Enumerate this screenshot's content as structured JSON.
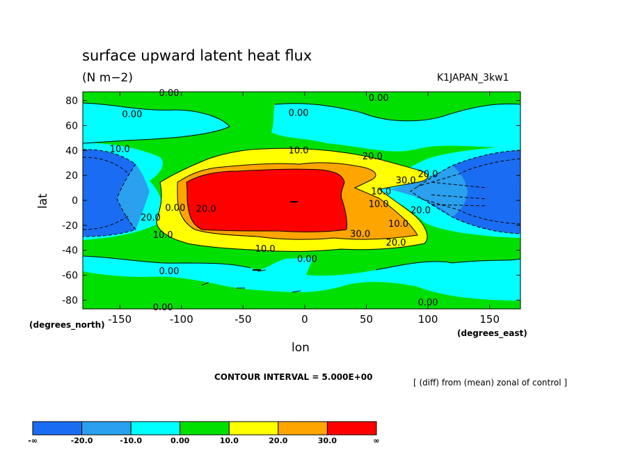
{
  "header": {
    "title": "surface upward latent heat flux",
    "units": "(N m−2)",
    "run": "K1JAPAN_3kw1"
  },
  "axes": {
    "xlabel": "lon",
    "ylabel": "lat",
    "x_units": "(degrees_east)",
    "y_units": "(degrees_north)"
  },
  "footer": {
    "contour_interval": "CONTOUR INTERVAL = 5.000E+00",
    "note": "[ (diff) from (mean) zonal of control ]"
  },
  "chart_data": {
    "type": "heatmap",
    "title": "surface upward latent heat flux",
    "subtitle": "(N m−2)",
    "xlabel": "lon",
    "ylabel": "lat",
    "xlim": [
      -180,
      175
    ],
    "ylim": [
      -87,
      87
    ],
    "x_ticks": [
      -150,
      -100,
      -50,
      0,
      50,
      100,
      150
    ],
    "y_ticks": [
      -80,
      -60,
      -40,
      -20,
      0,
      20,
      40,
      60,
      80
    ],
    "grid": false,
    "colorbar": {
      "labels": [
        "-∞",
        "-20.0",
        "-10.0",
        "0.00",
        "10.0",
        "20.0",
        "30.0",
        "∞"
      ],
      "colors": [
        "#1a6df2",
        "#2aa0ee",
        "#00ffff",
        "#00e000",
        "#ffff00",
        "#ffa500",
        "#ff0000"
      ]
    },
    "contour_interval": 5.0,
    "contour_labels": [
      {
        "text": "0.00",
        "lon": -110,
        "lat": 86
      },
      {
        "text": "0.00",
        "lon": 60,
        "lat": 82
      },
      {
        "text": "0.00",
        "lon": -140,
        "lat": 69
      },
      {
        "text": "0.00",
        "lon": -5,
        "lat": 70
      },
      {
        "text": "10.0",
        "lon": -150,
        "lat": 41
      },
      {
        "text": "10.0",
        "lon": -5,
        "lat": 40
      },
      {
        "text": "20.0",
        "lon": 55,
        "lat": 35
      },
      {
        "text": "20.0",
        "lon": 100,
        "lat": 21
      },
      {
        "text": "30.0",
        "lon": 82,
        "lat": 16
      },
      {
        "text": "10.0",
        "lon": 62,
        "lat": 7
      },
      {
        "text": "10.0",
        "lon": 60,
        "lat": -3
      },
      {
        "text": "20.0",
        "lon": 94,
        "lat": -8
      },
      {
        "text": "10.0",
        "lon": 76,
        "lat": -19
      },
      {
        "text": "20.0",
        "lon": -125,
        "lat": -14
      },
      {
        "text": "0.00",
        "lon": -105,
        "lat": -6
      },
      {
        "text": "20.0",
        "lon": -80,
        "lat": -7
      },
      {
        "text": "10.0",
        "lon": -115,
        "lat": -28
      },
      {
        "text": "30.0",
        "lon": 45,
        "lat": -27
      },
      {
        "text": "20.0",
        "lon": 74,
        "lat": -34
      },
      {
        "text": "10.0",
        "lon": -32,
        "lat": -39
      },
      {
        "text": "0.00",
        "lon": 2,
        "lat": -47
      },
      {
        "text": "0.00",
        "lon": -110,
        "lat": -57
      },
      {
        "text": "0.00",
        "lon": -115,
        "lat": -86
      },
      {
        "text": "0.00",
        "lon": 100,
        "lat": -82
      }
    ]
  }
}
